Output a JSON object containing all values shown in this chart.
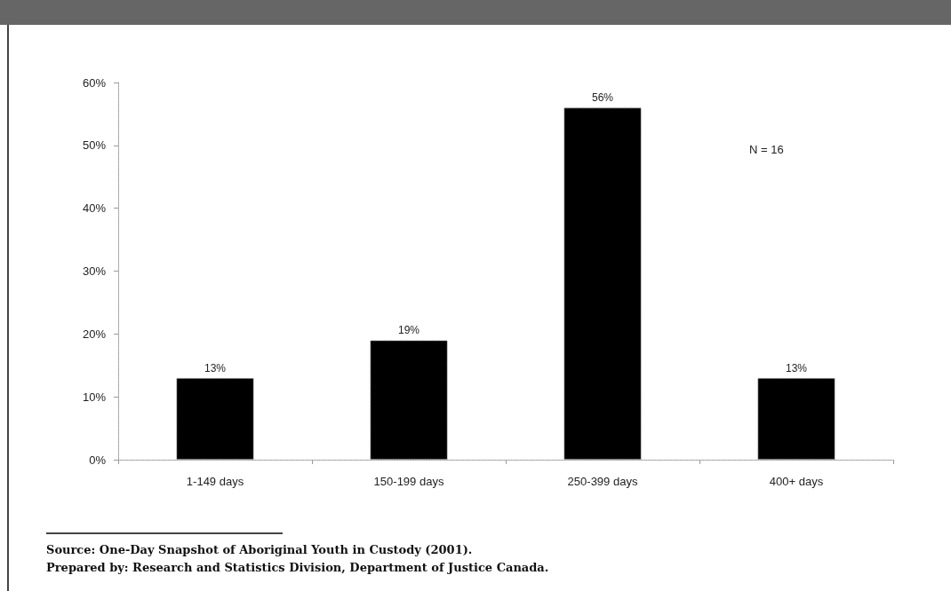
{
  "chart_data": {
    "type": "bar",
    "categories": [
      "1-149 days",
      "150-199 days",
      "250-399 days",
      "400+ days"
    ],
    "values": [
      13,
      19,
      56,
      13
    ],
    "value_labels": [
      "13%",
      "19%",
      "56%",
      "13%"
    ],
    "color": "#000000",
    "ylim": [
      0,
      60
    ],
    "yticks": [
      {
        "value": 0,
        "label": "0%"
      },
      {
        "value": 10,
        "label": "10%"
      },
      {
        "value": 20,
        "label": "20%"
      },
      {
        "value": 30,
        "label": "30%"
      },
      {
        "value": 40,
        "label": "40%"
      },
      {
        "value": 50,
        "label": "50%"
      },
      {
        "value": 60,
        "label": "60%"
      }
    ],
    "annotations": [
      "N = 16",
      "Source: One-Day Snapshot of Aboriginal Youth in Custody (2001).",
      "Prepared by: Research and Statistics Division, Department of Justice Canada."
    ]
  }
}
